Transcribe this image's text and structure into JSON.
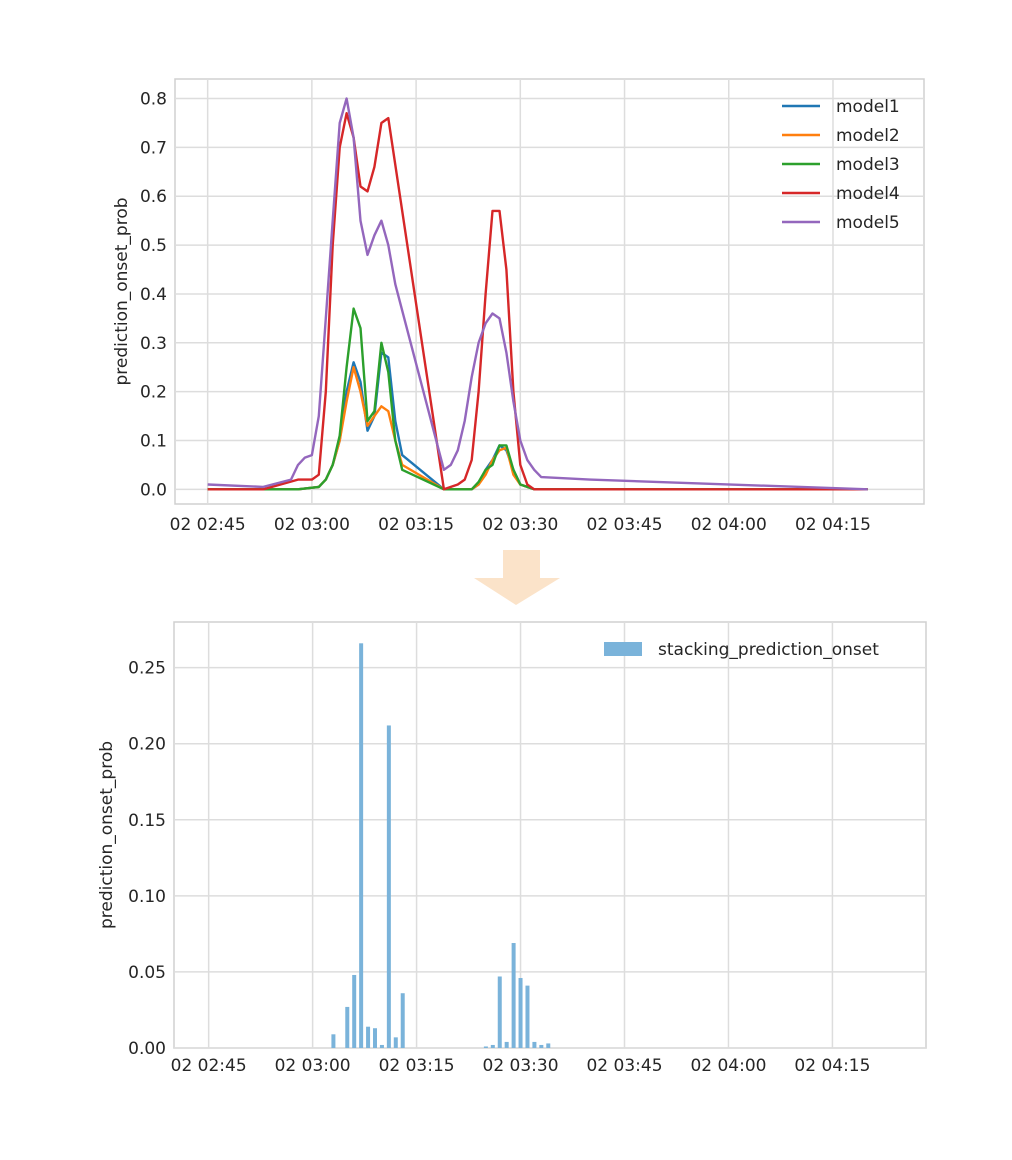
{
  "chart_data": [
    {
      "type": "line",
      "ylabel": "prediction_onset_prob",
      "ylim": [
        -0.03,
        0.84
      ],
      "yticks": [
        0.0,
        0.1,
        0.2,
        0.3,
        0.4,
        0.5,
        0.6,
        0.7,
        0.8
      ],
      "ytick_labels": [
        "0.0",
        "0.1",
        "0.2",
        "0.3",
        "0.4",
        "0.5",
        "0.6",
        "0.7",
        "0.8"
      ],
      "xlim_minutes": [
        40.3,
        148.1
      ],
      "xticks_minutes": [
        45,
        60,
        75,
        90,
        105,
        120,
        135
      ],
      "xtick_labels": [
        "02 02:45",
        "02 03:00",
        "02 03:15",
        "02 03:30",
        "02 03:45",
        "02 04:00",
        "02 04:15"
      ],
      "grid": true,
      "legend": "top-right",
      "series": [
        {
          "name": "model1",
          "color": "#1f77b4",
          "points": [
            [
              45,
              0.0
            ],
            [
              53,
              0.0
            ],
            [
              58,
              0.0
            ],
            [
              61,
              0.005
            ],
            [
              62,
              0.02
            ],
            [
              63,
              0.05
            ],
            [
              64,
              0.1
            ],
            [
              65,
              0.2
            ],
            [
              66,
              0.26
            ],
            [
              67,
              0.22
            ],
            [
              68,
              0.12
            ],
            [
              69,
              0.15
            ],
            [
              70,
              0.28
            ],
            [
              71,
              0.27
            ],
            [
              72,
              0.14
            ],
            [
              73,
              0.07
            ],
            [
              79,
              0.0
            ],
            [
              83,
              0.0
            ],
            [
              84,
              0.01
            ],
            [
              85,
              0.04
            ],
            [
              86,
              0.06
            ],
            [
              87,
              0.09
            ],
            [
              88,
              0.08
            ],
            [
              89,
              0.04
            ],
            [
              90,
              0.01
            ],
            [
              92,
              0.0
            ],
            [
              140,
              0.0
            ]
          ]
        },
        {
          "name": "model2",
          "color": "#ff7f0e",
          "points": [
            [
              45,
              0.0
            ],
            [
              53,
              0.0
            ],
            [
              58,
              0.0
            ],
            [
              61,
              0.005
            ],
            [
              62,
              0.02
            ],
            [
              63,
              0.05
            ],
            [
              64,
              0.1
            ],
            [
              65,
              0.18
            ],
            [
              66,
              0.25
            ],
            [
              67,
              0.2
            ],
            [
              68,
              0.13
            ],
            [
              69,
              0.15
            ],
            [
              70,
              0.17
            ],
            [
              71,
              0.16
            ],
            [
              72,
              0.1
            ],
            [
              73,
              0.05
            ],
            [
              79,
              0.0
            ],
            [
              83,
              0.0
            ],
            [
              84,
              0.01
            ],
            [
              85,
              0.03
            ],
            [
              86,
              0.06
            ],
            [
              87,
              0.08
            ],
            [
              88,
              0.085
            ],
            [
              89,
              0.03
            ],
            [
              90,
              0.01
            ],
            [
              92,
              0.0
            ],
            [
              140,
              0.0
            ]
          ]
        },
        {
          "name": "model3",
          "color": "#2ca02c",
          "points": [
            [
              45,
              0.0
            ],
            [
              53,
              0.0
            ],
            [
              58,
              0.0
            ],
            [
              61,
              0.005
            ],
            [
              62,
              0.02
            ],
            [
              63,
              0.05
            ],
            [
              64,
              0.11
            ],
            [
              65,
              0.25
            ],
            [
              66,
              0.37
            ],
            [
              67,
              0.33
            ],
            [
              68,
              0.14
            ],
            [
              69,
              0.16
            ],
            [
              70,
              0.3
            ],
            [
              71,
              0.24
            ],
            [
              72,
              0.1
            ],
            [
              73,
              0.04
            ],
            [
              79,
              0.0
            ],
            [
              83,
              0.0
            ],
            [
              84,
              0.015
            ],
            [
              85,
              0.04
            ],
            [
              86,
              0.05
            ],
            [
              87,
              0.09
            ],
            [
              88,
              0.09
            ],
            [
              89,
              0.04
            ],
            [
              90,
              0.01
            ],
            [
              92,
              0.0
            ],
            [
              140,
              0.0
            ]
          ]
        },
        {
          "name": "model4",
          "color": "#d62728",
          "points": [
            [
              45,
              0.0
            ],
            [
              53,
              0.0
            ],
            [
              58,
              0.02
            ],
            [
              60,
              0.02
            ],
            [
              61,
              0.03
            ],
            [
              62,
              0.2
            ],
            [
              63,
              0.5
            ],
            [
              64,
              0.7
            ],
            [
              65,
              0.77
            ],
            [
              66,
              0.72
            ],
            [
              67,
              0.62
            ],
            [
              68,
              0.61
            ],
            [
              69,
              0.66
            ],
            [
              70,
              0.75
            ],
            [
              71,
              0.76
            ],
            [
              79,
              0.0
            ],
            [
              81,
              0.01
            ],
            [
              82,
              0.02
            ],
            [
              83,
              0.06
            ],
            [
              84,
              0.2
            ],
            [
              85,
              0.4
            ],
            [
              86,
              0.57
            ],
            [
              87,
              0.57
            ],
            [
              88,
              0.45
            ],
            [
              89,
              0.2
            ],
            [
              90,
              0.05
            ],
            [
              91,
              0.01
            ],
            [
              92,
              0.0
            ],
            [
              140,
              0.0
            ]
          ]
        },
        {
          "name": "model5",
          "color": "#9467bd",
          "points": [
            [
              45,
              0.01
            ],
            [
              53,
              0.005
            ],
            [
              57,
              0.02
            ],
            [
              58,
              0.05
            ],
            [
              59,
              0.065
            ],
            [
              60,
              0.07
            ],
            [
              61,
              0.15
            ],
            [
              62,
              0.35
            ],
            [
              63,
              0.55
            ],
            [
              64,
              0.75
            ],
            [
              65,
              0.8
            ],
            [
              66,
              0.72
            ],
            [
              67,
              0.55
            ],
            [
              68,
              0.48
            ],
            [
              69,
              0.52
            ],
            [
              70,
              0.55
            ],
            [
              71,
              0.5
            ],
            [
              72,
              0.42
            ],
            [
              79,
              0.04
            ],
            [
              80,
              0.05
            ],
            [
              81,
              0.08
            ],
            [
              82,
              0.14
            ],
            [
              83,
              0.23
            ],
            [
              84,
              0.3
            ],
            [
              85,
              0.34
            ],
            [
              86,
              0.36
            ],
            [
              87,
              0.35
            ],
            [
              88,
              0.28
            ],
            [
              89,
              0.18
            ],
            [
              90,
              0.1
            ],
            [
              91,
              0.06
            ],
            [
              92,
              0.04
            ],
            [
              93,
              0.025
            ],
            [
              100,
              0.02
            ],
            [
              140,
              0.0
            ]
          ]
        }
      ]
    },
    {
      "type": "bar",
      "ylabel": "prediction_onset_prob",
      "ylim": [
        0.0,
        0.28
      ],
      "yticks": [
        0.0,
        0.05,
        0.1,
        0.15,
        0.2,
        0.25
      ],
      "ytick_labels": [
        "0.00",
        "0.05",
        "0.10",
        "0.15",
        "0.20",
        "0.25"
      ],
      "xlim_minutes": [
        40.0,
        148.5
      ],
      "xticks_minutes": [
        45,
        60,
        75,
        90,
        105,
        120,
        135
      ],
      "xtick_labels": [
        "02 02:45",
        "02 03:00",
        "02 03:15",
        "02 03:30",
        "02 03:45",
        "02 04:00",
        "02 04:15"
      ],
      "grid": true,
      "legend": "top-right",
      "series": [
        {
          "name": "stacking_prediction_onset",
          "color": "#7ab3da",
          "points": [
            [
              63,
              0.009
            ],
            [
              65,
              0.027
            ],
            [
              66,
              0.048
            ],
            [
              67,
              0.266
            ],
            [
              68,
              0.014
            ],
            [
              69,
              0.013
            ],
            [
              70,
              0.002
            ],
            [
              71,
              0.212
            ],
            [
              72,
              0.007
            ],
            [
              73,
              0.036
            ],
            [
              85,
              0.001
            ],
            [
              86,
              0.002
            ],
            [
              87,
              0.047
            ],
            [
              88,
              0.004
            ],
            [
              89,
              0.069
            ],
            [
              90,
              0.046
            ],
            [
              91,
              0.041
            ],
            [
              92,
              0.004
            ],
            [
              93,
              0.002
            ],
            [
              94,
              0.003
            ]
          ]
        }
      ]
    }
  ],
  "arrow": {
    "color": "#fbe3c9"
  }
}
